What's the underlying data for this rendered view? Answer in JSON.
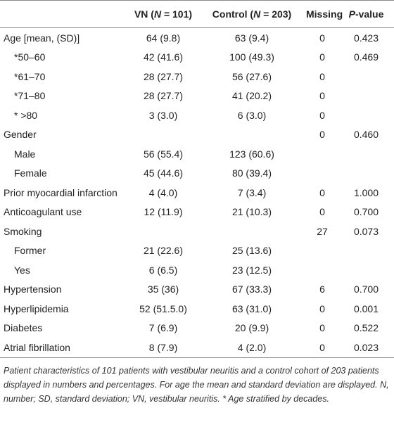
{
  "table": {
    "columns": [
      {
        "parts": [
          {
            "text": "VN ("
          },
          {
            "text": "N",
            "italic": true
          },
          {
            "text": " = 101)"
          }
        ]
      },
      {
        "parts": [
          {
            "text": "Control ("
          },
          {
            "text": "N",
            "italic": true
          },
          {
            "text": " = 203)"
          }
        ]
      },
      {
        "parts": [
          {
            "text": "Missing"
          }
        ]
      },
      {
        "parts": [
          {
            "text": "P",
            "italic": true
          },
          {
            "text": "-value"
          }
        ]
      }
    ],
    "rows": [
      {
        "label": "Age [mean, (SD)]",
        "cells": [
          "64 (9.8)",
          "63 (9.4)",
          "0",
          "0.423"
        ],
        "subrows": [
          {
            "label": "*50–60",
            "cells": [
              "42 (41.6)",
              "100 (49.3)",
              "0",
              "0.469"
            ]
          },
          {
            "label": "*61–70",
            "cells": [
              "28 (27.7)",
              "56 (27.6)",
              "0",
              null
            ]
          },
          {
            "label": "*71–80",
            "cells": [
              "28 (27.7)",
              "41 (20.2)",
              "0",
              null
            ]
          },
          {
            "label": "* >80",
            "cells": [
              "3 (3.0)",
              "6 (3.0)",
              "0",
              null
            ]
          }
        ]
      },
      {
        "label": "Gender",
        "cells": [
          null,
          null,
          "0",
          "0.460"
        ],
        "subrows": [
          {
            "label": "Male",
            "cells": [
              "56 (55.4)",
              "123 (60.6)",
              null,
              null
            ]
          },
          {
            "label": "Female",
            "cells": [
              "45 (44.6)",
              "80 (39.4)",
              null,
              null
            ]
          }
        ]
      },
      {
        "label": "Prior myocardial infarction",
        "cells": [
          "4 (4.0)",
          "7 (3.4)",
          "0",
          "1.000"
        ]
      },
      {
        "label": "Anticoagulant use",
        "cells": [
          "12 (11.9)",
          "21 (10.3)",
          "0",
          "0.700"
        ]
      },
      {
        "label": "Smoking",
        "cells": [
          null,
          null,
          "27",
          "0.073"
        ],
        "subrows": [
          {
            "label": "Former",
            "cells": [
              "21 (22.6)",
              "25 (13.6)",
              null,
              null
            ]
          },
          {
            "label": "Yes",
            "cells": [
              "6 (6.5)",
              "23 (12.5)",
              null,
              null
            ]
          }
        ]
      },
      {
        "label": "Hypertension",
        "cells": [
          "35 (36)",
          "67 (33.3)",
          "6",
          "0.700"
        ]
      },
      {
        "label": "Hyperlipidemia",
        "cells": [
          "52 (51.5.0)",
          "63 (31.0)",
          "0",
          "0.001"
        ]
      },
      {
        "label": "Diabetes",
        "cells": [
          "7 (6.9)",
          "20 (9.9)",
          "0",
          "0.522"
        ]
      },
      {
        "label": "Atrial fibrillation",
        "cells": [
          "8 (7.9)",
          "4 (2.0)",
          "0",
          "0.023"
        ]
      }
    ],
    "caption": "Patient characteristics of 101 patients with vestibular neuritis and a control cohort of 203 patients displayed in numbers and percentages. For age the mean and standard deviation are displayed. N, number; SD, standard deviation; VN, vestibular neuritis. * Age stratified by decades."
  }
}
